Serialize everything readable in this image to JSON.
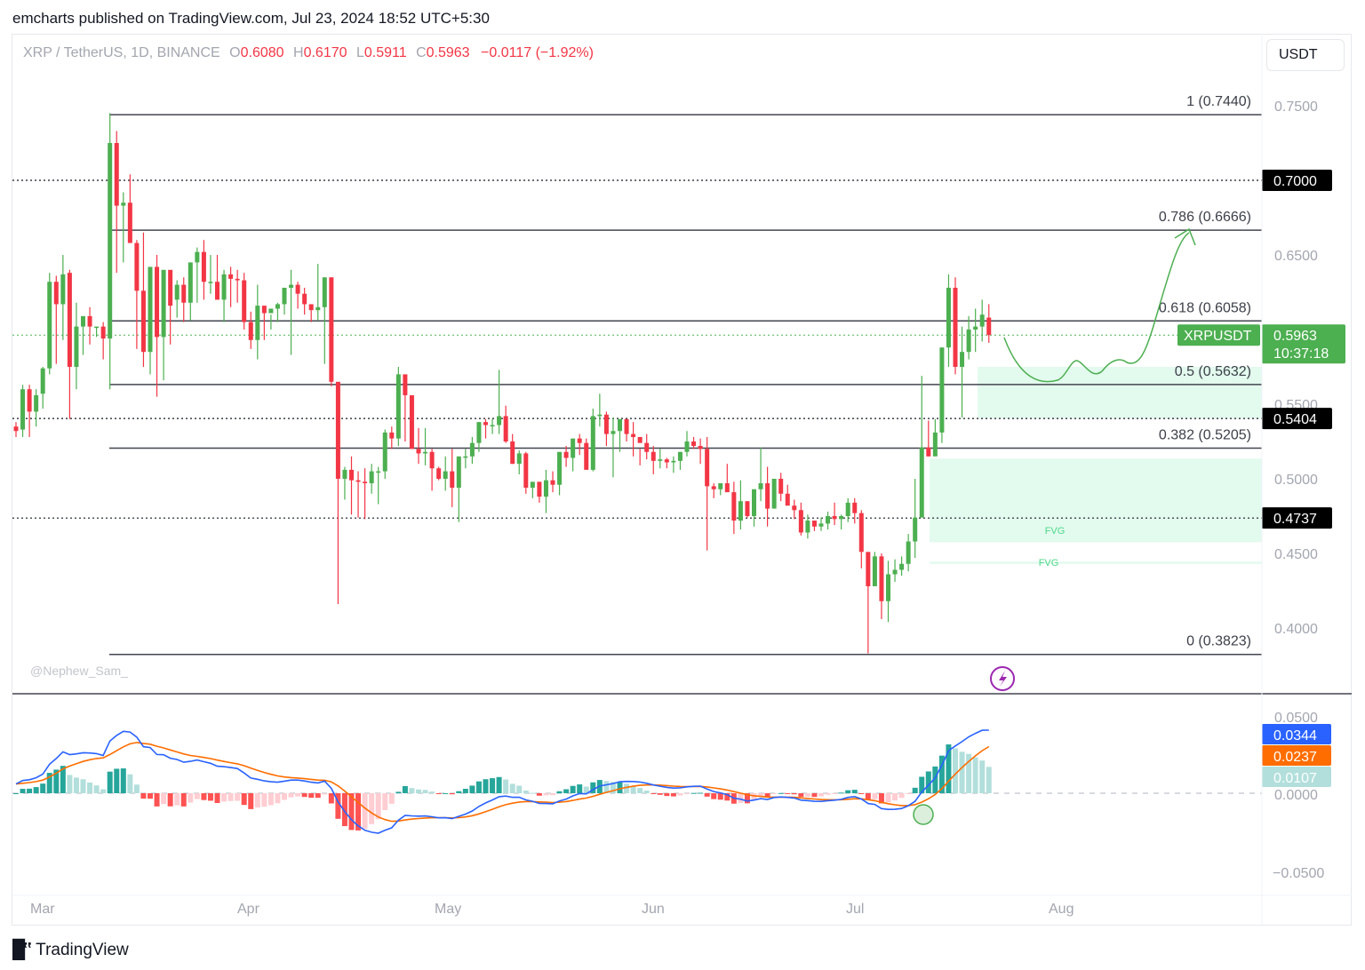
{
  "header": {
    "published": "emcharts published on TradingView.com, Jul 23, 2024 18:52 UTC+5:30"
  },
  "legend": {
    "symbol": "XRP / TetherUS, 1D, BINANCE",
    "o_label": "O",
    "o": "0.6080",
    "h_label": "H",
    "h": "0.6170",
    "l_label": "L",
    "l": "0.5911",
    "c_label": "C",
    "c": "0.5963",
    "change": "−0.0117 (−1.92%)"
  },
  "currency_button": "USDT",
  "watermark": "@Nephew_Sam_",
  "footer": {
    "brand": "TradingView",
    "logo_icon": "tradingview-logo-icon"
  },
  "colors": {
    "up": "#4caf50",
    "down": "#f23645",
    "fib_line": "#434651",
    "macd": "#2962ff",
    "signal": "#ff6d00",
    "hist_up_strong": "#26a69a",
    "hist_up_weak": "#b2dfdb",
    "hist_down_strong": "#ff5252",
    "hist_down_weak": "#ffcdd2",
    "fvg_fill": "#e3faee",
    "fvg_text": "#4cd98a",
    "projection": "#4caf50"
  },
  "chart_data": [
    {
      "type": "candlestick",
      "title": "XRP / TetherUS, 1D, BINANCE",
      "ylabel": "USDT",
      "ylim": [
        0.37,
        0.77
      ],
      "y_ticks": [
        "0.7500",
        "0.6500",
        "0.5500",
        "0.5000",
        "0.4500",
        "0.4000"
      ],
      "x_ticks": [
        "Mar",
        "Apr",
        "May",
        "Jun",
        "Jul",
        "Aug"
      ],
      "last_price": {
        "label": "XRPUSDT",
        "value": "0.5963",
        "countdown": "10:37:18"
      },
      "horizontal_levels": [
        {
          "value": "0.7000",
          "style": "dotted"
        },
        {
          "value": "0.5404",
          "style": "dotted"
        },
        {
          "value": "0.4737",
          "style": "dotted"
        }
      ],
      "fib_retracement": [
        {
          "ratio": "1",
          "price": "0.7440",
          "label": "1 (0.7440)"
        },
        {
          "ratio": "0.786",
          "price": "0.6666",
          "label": "0.786 (0.6666)"
        },
        {
          "ratio": "0.618",
          "price": "0.6058",
          "label": "0.618 (0.6058)"
        },
        {
          "ratio": "0.5",
          "price": "0.5632",
          "label": "0.5 (0.5632)"
        },
        {
          "ratio": "0.382",
          "price": "0.5205",
          "label": "0.382 (0.5205)"
        },
        {
          "ratio": "0",
          "price": "0.3823",
          "label": "0 (0.3823)"
        }
      ],
      "zones": [
        {
          "label": "",
          "top": 0.575,
          "bottom": 0.5404
        },
        {
          "label": "FVG",
          "top": 0.5135,
          "bottom": 0.4575
        },
        {
          "label": "FVG",
          "top": 0.4445,
          "bottom": 0.443
        }
      ],
      "ohlc": [
        [
          0.535,
          0.538,
          0.528,
          0.532
        ],
        [
          0.533,
          0.563,
          0.528,
          0.56
        ],
        [
          0.56,
          0.563,
          0.528,
          0.545
        ],
        [
          0.545,
          0.56,
          0.535,
          0.556
        ],
        [
          0.557,
          0.575,
          0.547,
          0.574
        ],
        [
          0.574,
          0.638,
          0.57,
          0.632
        ],
        [
          0.632,
          0.636,
          0.577,
          0.617
        ],
        [
          0.617,
          0.65,
          0.593,
          0.637
        ],
        [
          0.638,
          0.64,
          0.54,
          0.575
        ],
        [
          0.575,
          0.618,
          0.56,
          0.602
        ],
        [
          0.602,
          0.608,
          0.583,
          0.609
        ],
        [
          0.609,
          0.615,
          0.59,
          0.602
        ],
        [
          0.602,
          0.602,
          0.595,
          0.602
        ],
        [
          0.602,
          0.605,
          0.58,
          0.594
        ],
        [
          0.594,
          0.745,
          0.56,
          0.725
        ],
        [
          0.725,
          0.733,
          0.638,
          0.683
        ],
        [
          0.683,
          0.692,
          0.645,
          0.685
        ],
        [
          0.685,
          0.704,
          0.668,
          0.658
        ],
        [
          0.658,
          0.66,
          0.587,
          0.626
        ],
        [
          0.626,
          0.665,
          0.575,
          0.585
        ],
        [
          0.585,
          0.636,
          0.57,
          0.642
        ],
        [
          0.642,
          0.65,
          0.555,
          0.595
        ],
        [
          0.595,
          0.625,
          0.566,
          0.64
        ],
        [
          0.64,
          0.638,
          0.59,
          0.616
        ],
        [
          0.62,
          0.633,
          0.608,
          0.63
        ],
        [
          0.63,
          0.635,
          0.605,
          0.618
        ],
        [
          0.618,
          0.638,
          0.606,
          0.645
        ],
        [
          0.645,
          0.655,
          0.618,
          0.652
        ],
        [
          0.652,
          0.66,
          0.62,
          0.632
        ],
        [
          0.632,
          0.65,
          0.624,
          0.632
        ],
        [
          0.632,
          0.65,
          0.62,
          0.62
        ],
        [
          0.62,
          0.64,
          0.605,
          0.637
        ],
        [
          0.637,
          0.642,
          0.615,
          0.634
        ],
        [
          0.634,
          0.64,
          0.618,
          0.633
        ],
        [
          0.633,
          0.638,
          0.6,
          0.605
        ],
        [
          0.605,
          0.612,
          0.587,
          0.593
        ],
        [
          0.593,
          0.63,
          0.58,
          0.616
        ],
        [
          0.616,
          0.615,
          0.593,
          0.611
        ],
        [
          0.611,
          0.61,
          0.6,
          0.614
        ],
        [
          0.614,
          0.618,
          0.605,
          0.617
        ],
        [
          0.617,
          0.628,
          0.61,
          0.628
        ],
        [
          0.628,
          0.64,
          0.583,
          0.63
        ],
        [
          0.63,
          0.632,
          0.614,
          0.624
        ],
        [
          0.624,
          0.628,
          0.61,
          0.617
        ],
        [
          0.617,
          0.613,
          0.605,
          0.613
        ],
        [
          0.613,
          0.644,
          0.606,
          0.615
        ],
        [
          0.615,
          0.627,
          0.577,
          0.635
        ],
        [
          0.635,
          0.625,
          0.562,
          0.565
        ],
        [
          0.565,
          0.56,
          0.416,
          0.5
        ],
        [
          0.5,
          0.508,
          0.486,
          0.506
        ],
        [
          0.506,
          0.515,
          0.476,
          0.499
        ],
        [
          0.499,
          0.505,
          0.474,
          0.498
        ],
        [
          0.498,
          0.507,
          0.473,
          0.497
        ],
        [
          0.497,
          0.51,
          0.49,
          0.505
        ],
        [
          0.505,
          0.508,
          0.483,
          0.505
        ],
        [
          0.505,
          0.533,
          0.5,
          0.531
        ],
        [
          0.531,
          0.535,
          0.52,
          0.527
        ],
        [
          0.527,
          0.575,
          0.522,
          0.57
        ],
        [
          0.57,
          0.558,
          0.525,
          0.556
        ],
        [
          0.556,
          0.549,
          0.532,
          0.52
        ],
        [
          0.52,
          0.534,
          0.51,
          0.517
        ],
        [
          0.517,
          0.534,
          0.509,
          0.518
        ],
        [
          0.518,
          0.52,
          0.492,
          0.507
        ],
        [
          0.507,
          0.508,
          0.499,
          0.5
        ],
        [
          0.5,
          0.515,
          0.492,
          0.505
        ],
        [
          0.505,
          0.52,
          0.481,
          0.494
        ],
        [
          0.494,
          0.514,
          0.471,
          0.515
        ],
        [
          0.515,
          0.52,
          0.507,
          0.515
        ],
        [
          0.515,
          0.528,
          0.51,
          0.524
        ],
        [
          0.524,
          0.538,
          0.518,
          0.538
        ],
        [
          0.538,
          0.54,
          0.527,
          0.536
        ],
        [
          0.536,
          0.54,
          0.53,
          0.536
        ],
        [
          0.536,
          0.573,
          0.53,
          0.542
        ],
        [
          0.542,
          0.549,
          0.524,
          0.525
        ],
        [
          0.525,
          0.53,
          0.51,
          0.51
        ],
        [
          0.51,
          0.519,
          0.503,
          0.517
        ],
        [
          0.517,
          0.518,
          0.49,
          0.494
        ],
        [
          0.494,
          0.497,
          0.487,
          0.498
        ],
        [
          0.498,
          0.496,
          0.484,
          0.488
        ],
        [
          0.488,
          0.506,
          0.477,
          0.499
        ],
        [
          0.499,
          0.505,
          0.491,
          0.496
        ],
        [
          0.496,
          0.518,
          0.489,
          0.518
        ],
        [
          0.518,
          0.522,
          0.508,
          0.514
        ],
        [
          0.514,
          0.525,
          0.505,
          0.527
        ],
        [
          0.527,
          0.53,
          0.516,
          0.524
        ],
        [
          0.524,
          0.527,
          0.51,
          0.506
        ],
        [
          0.506,
          0.547,
          0.505,
          0.542
        ],
        [
          0.542,
          0.557,
          0.535,
          0.543
        ],
        [
          0.543,
          0.545,
          0.522,
          0.53
        ],
        [
          0.53,
          0.541,
          0.501,
          0.532
        ],
        [
          0.532,
          0.54,
          0.518,
          0.54
        ],
        [
          0.54,
          0.54,
          0.525,
          0.53
        ],
        [
          0.53,
          0.538,
          0.515,
          0.528
        ],
        [
          0.528,
          0.52,
          0.509,
          0.524
        ],
        [
          0.524,
          0.53,
          0.513,
          0.518
        ],
        [
          0.518,
          0.522,
          0.503,
          0.512
        ],
        [
          0.512,
          0.52,
          0.507,
          0.513
        ],
        [
          0.513,
          0.514,
          0.507,
          0.511
        ],
        [
          0.511,
          0.515,
          0.504,
          0.512
        ],
        [
          0.512,
          0.518,
          0.506,
          0.518
        ],
        [
          0.518,
          0.532,
          0.515,
          0.525
        ],
        [
          0.525,
          0.528,
          0.52,
          0.522
        ],
        [
          0.522,
          0.527,
          0.51,
          0.52
        ],
        [
          0.52,
          0.528,
          0.452,
          0.495
        ],
        [
          0.495,
          0.497,
          0.487,
          0.493
        ],
        [
          0.493,
          0.497,
          0.489,
          0.497
        ],
        [
          0.497,
          0.51,
          0.492,
          0.491
        ],
        [
          0.491,
          0.498,
          0.463,
          0.472
        ],
        [
          0.472,
          0.499,
          0.466,
          0.485
        ],
        [
          0.485,
          0.48,
          0.474,
          0.475
        ],
        [
          0.475,
          0.493,
          0.468,
          0.493
        ],
        [
          0.493,
          0.521,
          0.485,
          0.497
        ],
        [
          0.497,
          0.508,
          0.468,
          0.48
        ],
        [
          0.48,
          0.5,
          0.481,
          0.5
        ],
        [
          0.5,
          0.504,
          0.485,
          0.49
        ],
        [
          0.49,
          0.496,
          0.484,
          0.482
        ],
        [
          0.482,
          0.486,
          0.473,
          0.479
        ],
        [
          0.479,
          0.484,
          0.462,
          0.464
        ],
        [
          0.464,
          0.476,
          0.46,
          0.472
        ],
        [
          0.472,
          0.47,
          0.465,
          0.468
        ],
        [
          0.468,
          0.474,
          0.465,
          0.47
        ],
        [
          0.47,
          0.478,
          0.466,
          0.475
        ],
        [
          0.475,
          0.484,
          0.469,
          0.473
        ],
        [
          0.473,
          0.476,
          0.466,
          0.475
        ],
        [
          0.475,
          0.487,
          0.471,
          0.484
        ],
        [
          0.484,
          0.487,
          0.47,
          0.477
        ],
        [
          0.477,
          0.479,
          0.44,
          0.451
        ],
        [
          0.451,
          0.447,
          0.383,
          0.428
        ],
        [
          0.428,
          0.451,
          0.431,
          0.448
        ],
        [
          0.448,
          0.45,
          0.406,
          0.418
        ],
        [
          0.418,
          0.445,
          0.404,
          0.436
        ],
        [
          0.436,
          0.446,
          0.431,
          0.439
        ],
        [
          0.439,
          0.448,
          0.435,
          0.443
        ],
        [
          0.443,
          0.463,
          0.438,
          0.458
        ],
        [
          0.458,
          0.5,
          0.447,
          0.474
        ],
        [
          0.474,
          0.569,
          0.48,
          0.521
        ],
        [
          0.521,
          0.539,
          0.515,
          0.515
        ],
        [
          0.515,
          0.54,
          0.521,
          0.531
        ],
        [
          0.531,
          0.586,
          0.524,
          0.588
        ],
        [
          0.588,
          0.637,
          0.575,
          0.628
        ],
        [
          0.628,
          0.635,
          0.57,
          0.575
        ],
        [
          0.575,
          0.602,
          0.541,
          0.585
        ],
        [
          0.585,
          0.609,
          0.58,
          0.6
        ],
        [
          0.6,
          0.614,
          0.585,
          0.602
        ],
        [
          0.602,
          0.62,
          0.592,
          0.61
        ],
        [
          0.608,
          0.617,
          0.5911,
          0.5963
        ]
      ],
      "projection_path_note": "hand-drawn green curve: dips to ~0.560, small waves near 0.570, rises to 0.6666",
      "macd": {
        "ylim": [
          -0.06,
          0.06
        ],
        "y_ticks": [
          "0.0500",
          "0.0000",
          "−0.0500"
        ],
        "macd_value": "0.0344",
        "signal_value": "0.0237",
        "histogram_value": "0.0107"
      }
    }
  ]
}
